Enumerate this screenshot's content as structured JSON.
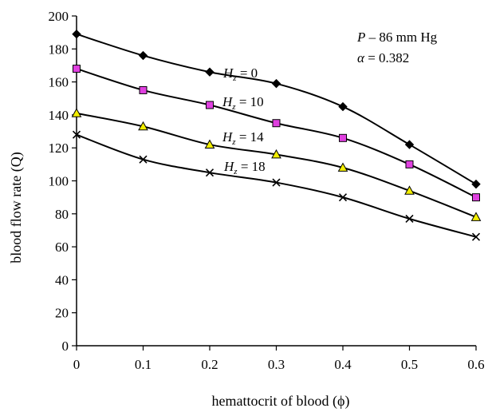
{
  "chart_data": {
    "type": "line",
    "xlabel": "hemattocrit of blood (ϕ)",
    "ylabel": "blood flow rate (Q)",
    "xlim": [
      0,
      0.6
    ],
    "ylim": [
      0,
      200
    ],
    "x_ticks": [
      "0",
      "0.1",
      "0.2",
      "0.3",
      "0.4",
      "0.5",
      "0.6"
    ],
    "y_ticks": [
      "0",
      "20",
      "40",
      "60",
      "80",
      "100",
      "120",
      "140",
      "160",
      "180",
      "200"
    ],
    "x": [
      0,
      0.1,
      0.2,
      0.3,
      0.4,
      0.5,
      0.6
    ],
    "series": [
      {
        "label": "Hz = 0",
        "marker": "diamond",
        "color": "#000000",
        "values": [
          189,
          176,
          166,
          159,
          145,
          122,
          98
        ]
      },
      {
        "label": "Hz = 10",
        "marker": "square",
        "color": "#e040e0",
        "values": [
          168,
          155,
          146,
          135,
          126,
          110,
          90
        ]
      },
      {
        "label": "Hz = 14",
        "marker": "triangle",
        "color": "#f2ee00",
        "values": [
          141,
          133,
          122,
          116,
          108,
          94,
          78
        ]
      },
      {
        "label": "Hz = 18",
        "marker": "x",
        "color": "#000000",
        "values": [
          128,
          113,
          105,
          99,
          90,
          77,
          66
        ]
      }
    ],
    "series_labels": [
      {
        "prefix": "H",
        "sub": "z",
        "suffix": " = 0"
      },
      {
        "prefix": "H",
        "sub": "z",
        "suffix": " = 10"
      },
      {
        "prefix": "H",
        "sub": "z",
        "suffix": " = 14"
      },
      {
        "prefix": "H",
        "sub": "z",
        "suffix": " = 18"
      }
    ],
    "params": {
      "line1_var": "P",
      "line1_rest": " – 86 mm Hg",
      "line2_var": "α",
      "line2_rest": " = 0.382"
    },
    "grid": false
  }
}
